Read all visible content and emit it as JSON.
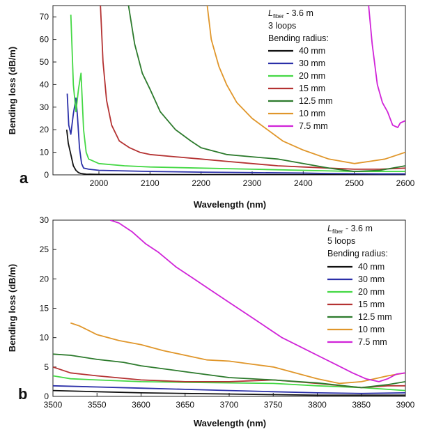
{
  "figure": {
    "panel_a_letter": "a",
    "panel_b_letter": "b"
  },
  "chart_data": [
    {
      "type": "line",
      "panel": "a",
      "xlabel": "Wavelength (nm)",
      "ylabel": "Bending loss (dB/m)",
      "xlim": [
        1910,
        2600
      ],
      "ylim": [
        0,
        75
      ],
      "x_ticks": [
        2000,
        2100,
        2200,
        2300,
        2400,
        2500,
        2600
      ],
      "y_ticks": [
        0,
        10,
        20,
        30,
        40,
        50,
        60,
        70
      ],
      "grid": false,
      "legend_position": "top-right",
      "legend": {
        "fiber_label_main": "L",
        "fiber_label_sub": "fiber",
        "fiber_label_rest": " - 3.6 m",
        "loops": "3 loops",
        "heading": "Bending radius:"
      },
      "series": [
        {
          "name": "40 mm",
          "color": "#111111",
          "x": [
            1937,
            1940,
            1945,
            1950,
            1955,
            1960,
            1965,
            1975,
            2000,
            2200,
            2400,
            2600
          ],
          "y": [
            20,
            14,
            9,
            4,
            2,
            1,
            0.6,
            0.3,
            0.2,
            0.1,
            0.1,
            0.1
          ]
        },
        {
          "name": "30 mm",
          "color": "#2a2fa8",
          "x": [
            1938,
            1941,
            1945,
            1950,
            1955,
            1958,
            1962,
            1966,
            1970,
            1980,
            2000,
            2100,
            2200,
            2300,
            2400,
            2450,
            2500,
            2550,
            2600
          ],
          "y": [
            36,
            22,
            18,
            27,
            34,
            26,
            12,
            5,
            3,
            2.5,
            2,
            1.5,
            1.2,
            1,
            0.8,
            0.6,
            0.5,
            0.4,
            0.4
          ]
        },
        {
          "name": "20 mm",
          "color": "#44d844",
          "x": [
            1945,
            1950,
            1955,
            1960,
            1965,
            1970,
            1975,
            1980,
            1990,
            2000,
            2050,
            2100,
            2200,
            2300,
            2400,
            2500,
            2550,
            2600
          ],
          "y": [
            71,
            40,
            28,
            38,
            45,
            20,
            10,
            7,
            6,
            5,
            4,
            3.5,
            3,
            2.5,
            2,
            1.5,
            1.5,
            1.5
          ]
        },
        {
          "name": "15 mm",
          "color": "#b43232",
          "x": [
            2003,
            2008,
            2015,
            2025,
            2040,
            2060,
            2080,
            2100,
            2150,
            2200,
            2250,
            2300,
            2350,
            2400,
            2450,
            2500,
            2550,
            2600
          ],
          "y": [
            75,
            50,
            33,
            22,
            15,
            12,
            10,
            9,
            8,
            7,
            6,
            5,
            4,
            3.5,
            3,
            2.5,
            2.5,
            3
          ]
        },
        {
          "name": "12.5 mm",
          "color": "#2c7a2c",
          "x": [
            2058,
            2070,
            2085,
            2100,
            2120,
            2150,
            2180,
            2200,
            2250,
            2300,
            2350,
            2400,
            2450,
            2500,
            2550,
            2600
          ],
          "y": [
            75,
            58,
            45,
            38,
            28,
            20,
            15,
            12,
            9,
            8,
            7,
            5,
            3,
            1.5,
            2,
            4
          ]
        },
        {
          "name": "10 mm",
          "color": "#e0962a",
          "x": [
            2212,
            2220,
            2235,
            2250,
            2270,
            2300,
            2330,
            2360,
            2400,
            2450,
            2500,
            2530,
            2560,
            2600
          ],
          "y": [
            75,
            60,
            48,
            40,
            32,
            25,
            20,
            15,
            11,
            7,
            5,
            6,
            7,
            10
          ]
        },
        {
          "name": "7.5 mm",
          "color": "#d023d8",
          "x": [
            2528,
            2535,
            2545,
            2555,
            2565,
            2575,
            2585,
            2590,
            2600
          ],
          "y": [
            75,
            58,
            40,
            32,
            28,
            22,
            21,
            23,
            24
          ]
        }
      ]
    },
    {
      "type": "line",
      "panel": "b",
      "xlabel": "Wavelength (nm)",
      "ylabel": "Bending loss (dB/m)",
      "xlim": [
        3500,
        3900
      ],
      "ylim": [
        0,
        30
      ],
      "x_ticks": [
        3500,
        3550,
        3600,
        3650,
        3700,
        3750,
        3800,
        3850,
        3900
      ],
      "y_ticks": [
        0,
        5,
        10,
        15,
        20,
        25,
        30
      ],
      "grid": false,
      "legend_position": "top-right",
      "legend": {
        "fiber_label_main": "L",
        "fiber_label_sub": "fiber",
        "fiber_label_rest": " - 3.6 m",
        "loops": "5 loops",
        "heading": "Bending radius:"
      },
      "series": [
        {
          "name": "40 mm",
          "color": "#111111",
          "x": [
            3500,
            3550,
            3600,
            3650,
            3700,
            3750,
            3800,
            3850,
            3900
          ],
          "y": [
            1.0,
            0.8,
            0.6,
            0.5,
            0.4,
            0.3,
            0.2,
            0.2,
            0.2
          ]
        },
        {
          "name": "30 mm",
          "color": "#2a2fa8",
          "x": [
            3500,
            3550,
            3600,
            3650,
            3700,
            3750,
            3800,
            3850,
            3900
          ],
          "y": [
            1.8,
            1.6,
            1.4,
            1.2,
            1.0,
            0.8,
            0.6,
            0.5,
            0.6
          ]
        },
        {
          "name": "20 mm",
          "color": "#44d844",
          "x": [
            3500,
            3520,
            3550,
            3600,
            3650,
            3700,
            3750,
            3800,
            3850,
            3880,
            3900
          ],
          "y": [
            3.5,
            3,
            2.8,
            2.5,
            2.4,
            2.3,
            2.2,
            1.8,
            1.5,
            1.2,
            1.0
          ]
        },
        {
          "name": "15 mm",
          "color": "#b43232",
          "x": [
            3500,
            3520,
            3550,
            3600,
            3650,
            3700,
            3750,
            3800,
            3850,
            3880,
            3900
          ],
          "y": [
            5,
            4,
            3.5,
            2.8,
            2.5,
            2.5,
            2.8,
            2.2,
            1.5,
            1.8,
            1.8
          ]
        },
        {
          "name": "12.5 mm",
          "color": "#2c7a2c",
          "x": [
            3500,
            3520,
            3550,
            3580,
            3600,
            3650,
            3700,
            3750,
            3800,
            3850,
            3880,
            3900
          ],
          "y": [
            7.2,
            7,
            6.3,
            5.8,
            5.2,
            4.2,
            3.2,
            2.8,
            2.3,
            1.5,
            2,
            2.5
          ]
        },
        {
          "name": "10 mm",
          "color": "#e0962a",
          "x": [
            3520,
            3530,
            3550,
            3575,
            3600,
            3625,
            3650,
            3675,
            3700,
            3725,
            3750,
            3775,
            3800,
            3825,
            3850,
            3865,
            3880,
            3900
          ],
          "y": [
            12.5,
            12,
            10.5,
            9.5,
            8.8,
            7.8,
            7,
            6.2,
            6,
            5.5,
            5,
            4,
            3,
            2.2,
            2.5,
            3,
            3.5,
            4
          ]
        },
        {
          "name": "7.5 mm",
          "color": "#d023d8",
          "x": [
            3565,
            3575,
            3590,
            3605,
            3620,
            3640,
            3660,
            3680,
            3700,
            3720,
            3740,
            3760,
            3780,
            3800,
            3820,
            3840,
            3855,
            3870,
            3880,
            3890,
            3900
          ],
          "y": [
            30,
            29.5,
            28,
            26,
            24.5,
            22,
            20,
            18,
            16,
            14,
            12,
            10,
            8.5,
            7,
            5.5,
            4,
            3,
            2.5,
            3,
            3.8,
            4
          ]
        }
      ]
    }
  ]
}
